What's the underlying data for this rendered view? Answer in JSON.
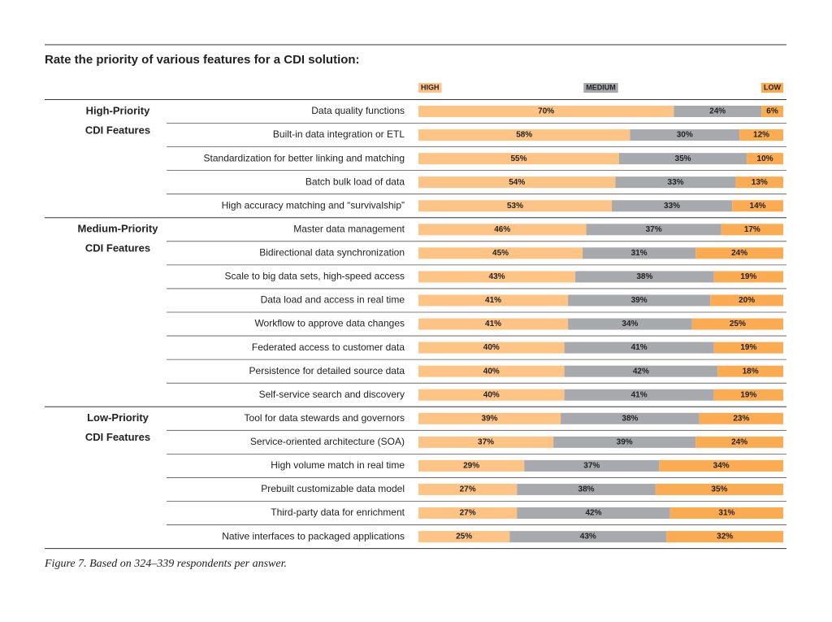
{
  "chart_data": {
    "type": "stacked-bar",
    "title": "Rate the priority of various features for a CDI solution:",
    "caption": "Figure 7. Based on 324–339 respondents per answer.",
    "xlim": [
      0,
      100
    ],
    "groups": [
      {
        "label": [
          "High-Priority",
          "CDI Features"
        ],
        "categories": [
          "Data quality functions",
          "Built-in data integration or ETL",
          "Standardization for better linking and matching",
          "Batch bulk load of data",
          "High accuracy matching and “survivalship”"
        ]
      },
      {
        "label": [
          "Medium-Priority",
          "CDI Features"
        ],
        "categories": [
          "Master data management",
          "Bidirectional data synchronization",
          "Scale to big data sets, high-speed access",
          "Data load and access in real time",
          "Workflow to approve data changes",
          "Federated access to customer data",
          "Persistence for detailed source data",
          "Self-service search and discovery"
        ]
      },
      {
        "label": [
          "Low-Priority",
          "CDI Features"
        ],
        "categories": [
          "Tool for data stewards and governors",
          "Service-oriented architecture (SOA)",
          "High volume match in real time",
          "Prebuilt customizable data model",
          "Third-party data for enrichment",
          "Native interfaces to packaged applications"
        ]
      }
    ],
    "series": [
      {
        "name": "HIGH",
        "color": "#fdc485",
        "text_color": "#222222",
        "values": [
          70,
          58,
          55,
          54,
          53,
          46,
          45,
          43,
          41,
          41,
          40,
          40,
          40,
          39,
          37,
          29,
          27,
          27,
          25
        ],
        "value_labels": [
          "70%",
          "58%",
          "55%",
          "54%",
          "53%",
          "46%",
          "45%",
          "43%",
          "41%",
          "41%",
          "40%",
          "40%",
          "40%",
          "39%",
          "37%",
          "29%",
          "27%",
          "27%",
          "25%"
        ]
      },
      {
        "name": "MEDIUM",
        "color": "#a7a9ac",
        "text_color": "#222222",
        "values": [
          24,
          30,
          35,
          33,
          33,
          37,
          31,
          38,
          39,
          34,
          41,
          42,
          41,
          38,
          39,
          37,
          38,
          42,
          43
        ],
        "value_labels": [
          "24%",
          "30%",
          "35%",
          "33%",
          "33%",
          "37%",
          "31%",
          "38%",
          "39%",
          "34%",
          "41%",
          "42%",
          "41%",
          "38%",
          "39%",
          "37%",
          "38%",
          "42%",
          "43%"
        ]
      },
      {
        "name": "LOW",
        "color": "#fbab52",
        "text_color": "#ffffff",
        "values": [
          6,
          12,
          10,
          13,
          14,
          17,
          24,
          19,
          20,
          25,
          19,
          18,
          19,
          23,
          24,
          34,
          35,
          31,
          32
        ],
        "value_labels": [
          "6%",
          "12%",
          "10%",
          "13%",
          "14%",
          "17%",
          "24%",
          "19%",
          "20%",
          "25%",
          "19%",
          "18%",
          "19%",
          "23%",
          "24%",
          "34%",
          "35%",
          "31%",
          "32%"
        ]
      }
    ]
  }
}
